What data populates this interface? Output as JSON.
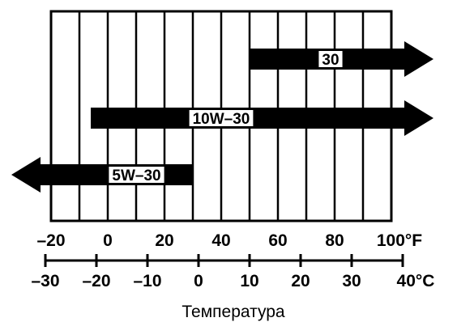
{
  "chart_data": {
    "type": "bar",
    "orientation": "horizontal-range",
    "xlabel": "Температура",
    "fahrenheit_axis": {
      "ticks": [
        -20,
        0,
        20,
        40,
        60,
        80,
        100
      ],
      "tick_labels": [
        "–20",
        "0",
        "20",
        "40",
        "60",
        "80",
        "100°F"
      ],
      "range": [
        -20,
        100
      ]
    },
    "celsius_axis": {
      "ticks": [
        -30,
        -20,
        -10,
        0,
        10,
        20,
        30,
        40
      ],
      "tick_labels": [
        "–30",
        "–20",
        "–10",
        "0",
        "10",
        "20",
        "30",
        "40°C"
      ]
    },
    "grid": true,
    "series": [
      {
        "name": "30",
        "start_f": 50,
        "end_f": 100,
        "extends_above": true,
        "extends_below": false
      },
      {
        "name": "10W–30",
        "start_f": -6,
        "end_f": 100,
        "extends_above": true,
        "extends_below": false
      },
      {
        "name": "5W–30",
        "start_f": 30,
        "end_f": -20,
        "extends_above": false,
        "extends_below": true
      }
    ],
    "colors": {
      "bar": "#000000",
      "label_bg": "#ffffff",
      "grid": "#000000"
    }
  }
}
